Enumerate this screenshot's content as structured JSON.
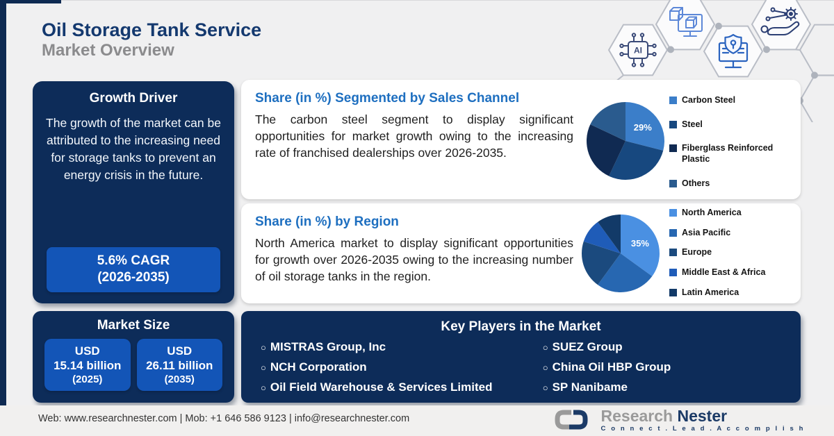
{
  "header": {
    "title": "Oil Storage Tank Service",
    "subtitle": "Market Overview"
  },
  "growth_driver": {
    "heading": "Growth Driver",
    "body": "The growth of the market can be attributed to the increasing need for storage tanks to prevent an energy crisis in the future.",
    "cagr_line1": "5.6% CAGR",
    "cagr_line2": "(2026-2035)"
  },
  "market_size": {
    "heading": "Market Size",
    "items": [
      {
        "line1": "USD",
        "line2": "15.14 billion",
        "line3": "(2025)"
      },
      {
        "line1": "USD",
        "line2": "26.11 billion",
        "line3": "(2035)"
      }
    ]
  },
  "sales_channel_card": {
    "heading": "Share (in %) Segmented by Sales Channel",
    "body": "The carbon steel segment to display significant opportunities for market growth owing to the increasing rate of franchised dealerships over 2026-2035."
  },
  "region_card": {
    "heading": "Share (in %) by Region",
    "body": "North America market to display significant opportunities for growth over 2026-2035 owing to the increasing number of oil storage tanks in the region."
  },
  "key_players": {
    "heading": "Key Players in the Market",
    "column1": [
      "MISTRAS Group, Inc",
      "NCH Corporation",
      "Oil Field Warehouse & Services Limited"
    ],
    "column2": [
      "SUEZ Group",
      "China Oil HBP Group",
      "SP Nanibame"
    ]
  },
  "footer": {
    "contact": "Web: www.researchnester.com | Mob: +1 646 586 9123 | info@researchnester.com",
    "brand_word1": "Research",
    "brand_word2": "Nester",
    "tagline": "C o n n e c t .   L e a d .   A c c o m p l i s h"
  },
  "decoration": {
    "hex_icons": [
      "ai-chip-icon",
      "3d-modeling-monitor-icon",
      "secure-monitor-icon",
      "automation-hand-gear-icon"
    ]
  },
  "colors": {
    "navy_panel": "#0d2c59",
    "bright_blue_button": "#1355b7",
    "card_heading_blue": "#1e6fc0",
    "title_navy": "#14396f",
    "subtitle_gray": "#8b8b8d"
  },
  "chart_data": [
    {
      "type": "pie",
      "title": "Share (in %) Segmented by Sales Channel",
      "labels": [
        "Carbon Steel",
        "Steel",
        "Fiberglass Reinforced Plastic",
        "Others"
      ],
      "values": [
        29,
        28,
        25,
        18
      ],
      "colors": [
        "#3b7ec9",
        "#17487f",
        "#102a52",
        "#2a5b8e"
      ],
      "shown_label": {
        "text": "29%",
        "segment": "Carbon Steel"
      },
      "legend_position": "right"
    },
    {
      "type": "pie",
      "title": "Share (in %) by Region",
      "labels": [
        "North America",
        "Asia Pacific",
        "Europe",
        "Middle East & Africa",
        "Latin America"
      ],
      "values": [
        35,
        25,
        20,
        10,
        10
      ],
      "colors": [
        "#4a90e2",
        "#2767b1",
        "#1b4a7e",
        "#1f5cb8",
        "#123a68"
      ],
      "shown_label": {
        "text": "35%",
        "segment": "North America"
      },
      "legend_position": "right"
    }
  ]
}
